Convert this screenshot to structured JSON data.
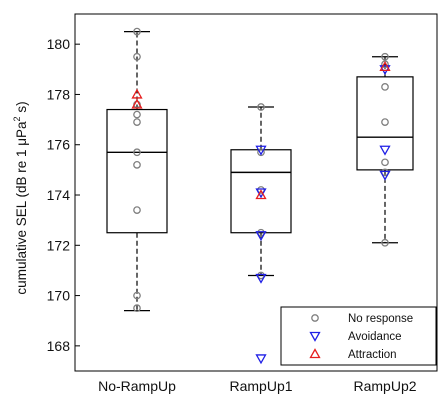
{
  "chart_data": {
    "type": "box",
    "ylabel_parts": [
      "cumulative SEL (dB re 1 ",
      "μPa",
      "2",
      " s)"
    ],
    "ylim": [
      167,
      181.2
    ],
    "yticks": [
      168,
      170,
      172,
      174,
      176,
      178,
      180
    ],
    "categories": [
      "No-RampUp",
      "RampUp1",
      "RampUp2"
    ],
    "boxes": [
      {
        "category": "No-RampUp",
        "whisker_low": 169.4,
        "q1": 172.5,
        "median": 175.7,
        "q3": 177.4,
        "whisker_high": 180.5
      },
      {
        "category": "RampUp1",
        "whisker_low": 170.8,
        "q1": 172.5,
        "median": 174.9,
        "q3": 175.8,
        "whisker_high": 177.5
      },
      {
        "category": "RampUp2",
        "whisker_low": 172.1,
        "q1": 175.0,
        "median": 176.3,
        "q3": 178.7,
        "whisker_high": 179.5
      }
    ],
    "series": [
      {
        "name": "No response",
        "marker": "circle",
        "color": "#7f7f7f",
        "points": [
          {
            "x": "No-RampUp",
            "y": 180.5
          },
          {
            "x": "No-RampUp",
            "y": 179.5
          },
          {
            "x": "No-RampUp",
            "y": 177.6
          },
          {
            "x": "No-RampUp",
            "y": 177.2
          },
          {
            "x": "No-RampUp",
            "y": 176.9
          },
          {
            "x": "No-RampUp",
            "y": 175.7
          },
          {
            "x": "No-RampUp",
            "y": 175.2
          },
          {
            "x": "No-RampUp",
            "y": 173.4
          },
          {
            "x": "No-RampUp",
            "y": 170.0
          },
          {
            "x": "No-RampUp",
            "y": 169.5
          },
          {
            "x": "RampUp1",
            "y": 177.5
          },
          {
            "x": "RampUp1",
            "y": 175.7
          },
          {
            "x": "RampUp1",
            "y": 174.2
          },
          {
            "x": "RampUp1",
            "y": 172.5
          },
          {
            "x": "RampUp1",
            "y": 170.8
          },
          {
            "x": "RampUp2",
            "y": 179.5
          },
          {
            "x": "RampUp2",
            "y": 179.2
          },
          {
            "x": "RampUp2",
            "y": 178.3
          },
          {
            "x": "RampUp2",
            "y": 176.9
          },
          {
            "x": "RampUp2",
            "y": 175.3
          },
          {
            "x": "RampUp2",
            "y": 174.9
          },
          {
            "x": "RampUp2",
            "y": 172.1
          }
        ]
      },
      {
        "name": "Avoidance",
        "marker": "triangle-down",
        "color": "#1f1fe6",
        "points": [
          {
            "x": "RampUp1",
            "y": 175.8
          },
          {
            "x": "RampUp1",
            "y": 174.1
          },
          {
            "x": "RampUp1",
            "y": 172.4
          },
          {
            "x": "RampUp1",
            "y": 170.7
          },
          {
            "x": "RampUp1",
            "y": 167.5
          },
          {
            "x": "RampUp2",
            "y": 179.0
          },
          {
            "x": "RampUp2",
            "y": 175.8
          },
          {
            "x": "RampUp2",
            "y": 174.8
          }
        ]
      },
      {
        "name": "Attraction",
        "marker": "triangle-up",
        "color": "#e61f1f",
        "points": [
          {
            "x": "No-RampUp",
            "y": 178.0
          },
          {
            "x": "No-RampUp",
            "y": 177.6
          },
          {
            "x": "RampUp1",
            "y": 174.0
          },
          {
            "x": "RampUp2",
            "y": 179.1
          }
        ]
      }
    ],
    "legend_position": "bottom-right",
    "grid": false
  }
}
